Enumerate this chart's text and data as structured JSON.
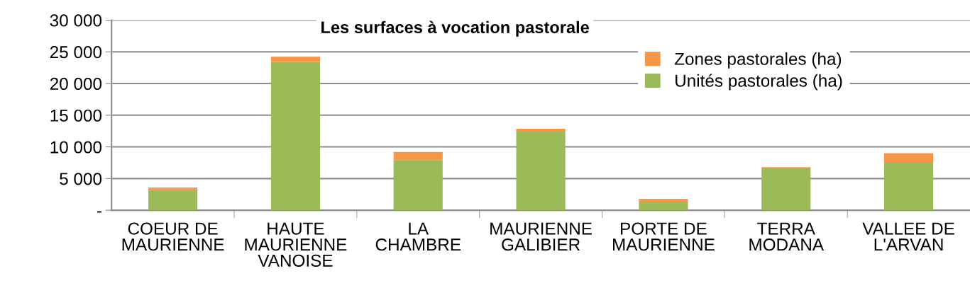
{
  "chart_data": {
    "type": "bar",
    "title": "Les surfaces à vocation pastorale",
    "stacked": true,
    "categories": [
      "COEUR DE\nMAURIENNE",
      "HAUTE\nMAURIENNE\nVANOISE",
      "LA\nCHAMBRE",
      "MAURIENNE\nGALIBIER",
      "PORTE DE\nMAURIENNE",
      "TERRA\nMODANA",
      "VALLEE DE\nL'ARVAN"
    ],
    "series": [
      {
        "name": "Unités pastorales (ha)",
        "color": "#9bbb59",
        "values": [
          3200,
          23400,
          7900,
          12400,
          1360,
          6600,
          7600
        ]
      },
      {
        "name": "Zones pastorales (ha)",
        "color": "#f79646",
        "values": [
          400,
          850,
          1300,
          450,
          440,
          200,
          1400
        ]
      }
    ],
    "ylim": [
      0,
      30000
    ],
    "yticks": [
      {
        "value": 0,
        "label": "-"
      },
      {
        "value": 5000,
        "label": "5 000"
      },
      {
        "value": 10000,
        "label": "10 000"
      },
      {
        "value": 15000,
        "label": "15 000"
      },
      {
        "value": 20000,
        "label": "20 000"
      },
      {
        "value": 25000,
        "label": "25 000"
      },
      {
        "value": 30000,
        "label": "30 000"
      }
    ],
    "grid": "y",
    "legend": "top right"
  }
}
